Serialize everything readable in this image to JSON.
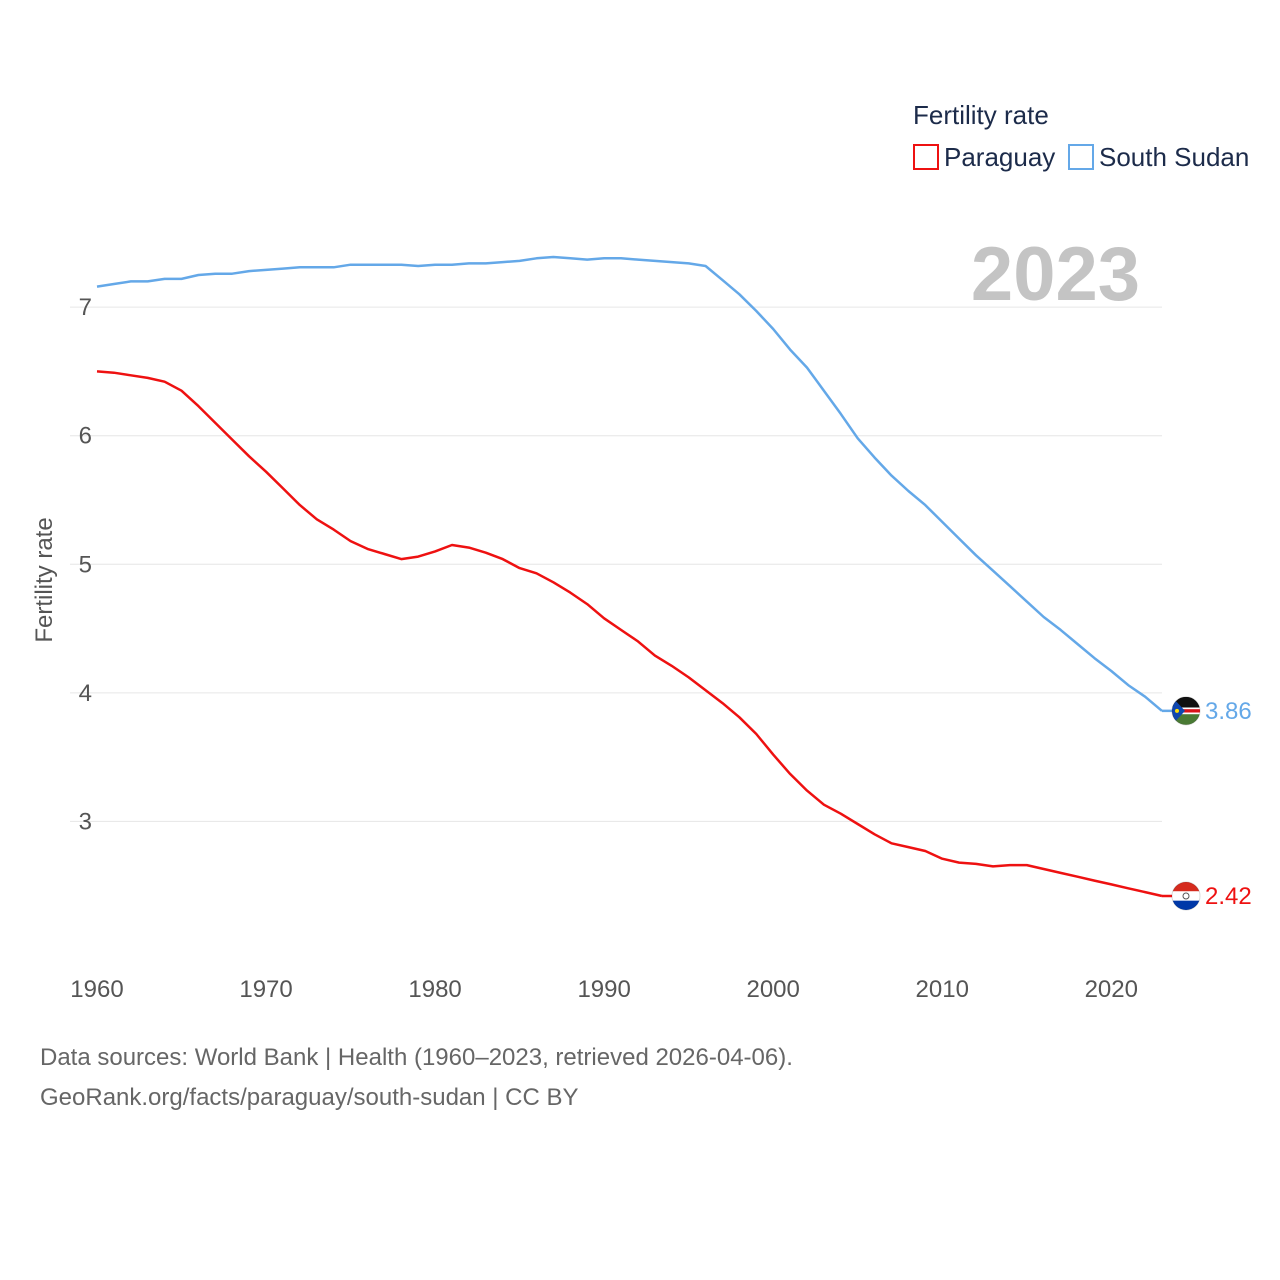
{
  "chart_data": {
    "type": "line",
    "title": "",
    "ylabel": "Fertility rate",
    "xlabel": "",
    "xlim": [
      1960,
      2023
    ],
    "ylim": [
      2.0,
      7.6
    ],
    "yticks": [
      3,
      4,
      5,
      6,
      7
    ],
    "xticks": [
      1960,
      1970,
      1980,
      1990,
      2000,
      2010,
      2020
    ],
    "grid": true,
    "year_label": "2023",
    "legend": {
      "title": "Fertility rate",
      "position": "top-right",
      "entries": [
        "Paraguay",
        "South Sudan"
      ]
    },
    "x": [
      1960,
      1961,
      1962,
      1963,
      1964,
      1965,
      1966,
      1967,
      1968,
      1969,
      1970,
      1971,
      1972,
      1973,
      1974,
      1975,
      1976,
      1977,
      1978,
      1979,
      1980,
      1981,
      1982,
      1983,
      1984,
      1985,
      1986,
      1987,
      1988,
      1989,
      1990,
      1991,
      1992,
      1993,
      1994,
      1995,
      1996,
      1997,
      1998,
      1999,
      2000,
      2001,
      2002,
      2003,
      2004,
      2005,
      2006,
      2007,
      2008,
      2009,
      2010,
      2011,
      2012,
      2013,
      2014,
      2015,
      2016,
      2017,
      2018,
      2019,
      2020,
      2021,
      2022,
      2023
    ],
    "series": [
      {
        "name": "Paraguay",
        "color": "#ee1111",
        "end_label": "2.42",
        "flag": "paraguay-flag",
        "values": [
          6.5,
          6.49,
          6.47,
          6.45,
          6.42,
          6.35,
          6.23,
          6.1,
          5.97,
          5.84,
          5.72,
          5.59,
          5.46,
          5.35,
          5.27,
          5.18,
          5.12,
          5.08,
          5.04,
          5.06,
          5.1,
          5.15,
          5.13,
          5.09,
          5.04,
          4.97,
          4.93,
          4.86,
          4.78,
          4.69,
          4.58,
          4.49,
          4.4,
          4.29,
          4.21,
          4.12,
          4.02,
          3.92,
          3.81,
          3.68,
          3.52,
          3.37,
          3.24,
          3.13,
          3.06,
          2.98,
          2.9,
          2.83,
          2.8,
          2.77,
          2.71,
          2.68,
          2.67,
          2.65,
          2.66,
          2.66,
          2.63,
          2.6,
          2.57,
          2.54,
          2.51,
          2.48,
          2.45,
          2.42
        ]
      },
      {
        "name": "South Sudan",
        "color": "#64a8e8",
        "end_label": "3.86",
        "flag": "south-sudan-flag",
        "values": [
          7.16,
          7.18,
          7.2,
          7.2,
          7.22,
          7.22,
          7.25,
          7.26,
          7.26,
          7.28,
          7.29,
          7.3,
          7.31,
          7.31,
          7.31,
          7.33,
          7.33,
          7.33,
          7.33,
          7.32,
          7.33,
          7.33,
          7.34,
          7.34,
          7.35,
          7.36,
          7.38,
          7.39,
          7.38,
          7.37,
          7.38,
          7.38,
          7.37,
          7.36,
          7.35,
          7.34,
          7.32,
          7.21,
          7.1,
          6.97,
          6.83,
          6.67,
          6.53,
          6.35,
          6.17,
          5.98,
          5.83,
          5.69,
          5.57,
          5.46,
          5.33,
          5.2,
          5.07,
          4.95,
          4.83,
          4.71,
          4.59,
          4.49,
          4.38,
          4.27,
          4.17,
          4.06,
          3.97,
          3.86
        ]
      }
    ]
  },
  "footer": {
    "line1": "Data sources: World Bank | Health (1960–2023, retrieved 2026-04-06).",
    "line2": "GeoRank.org/facts/paraguay/south-sudan | CC BY"
  }
}
